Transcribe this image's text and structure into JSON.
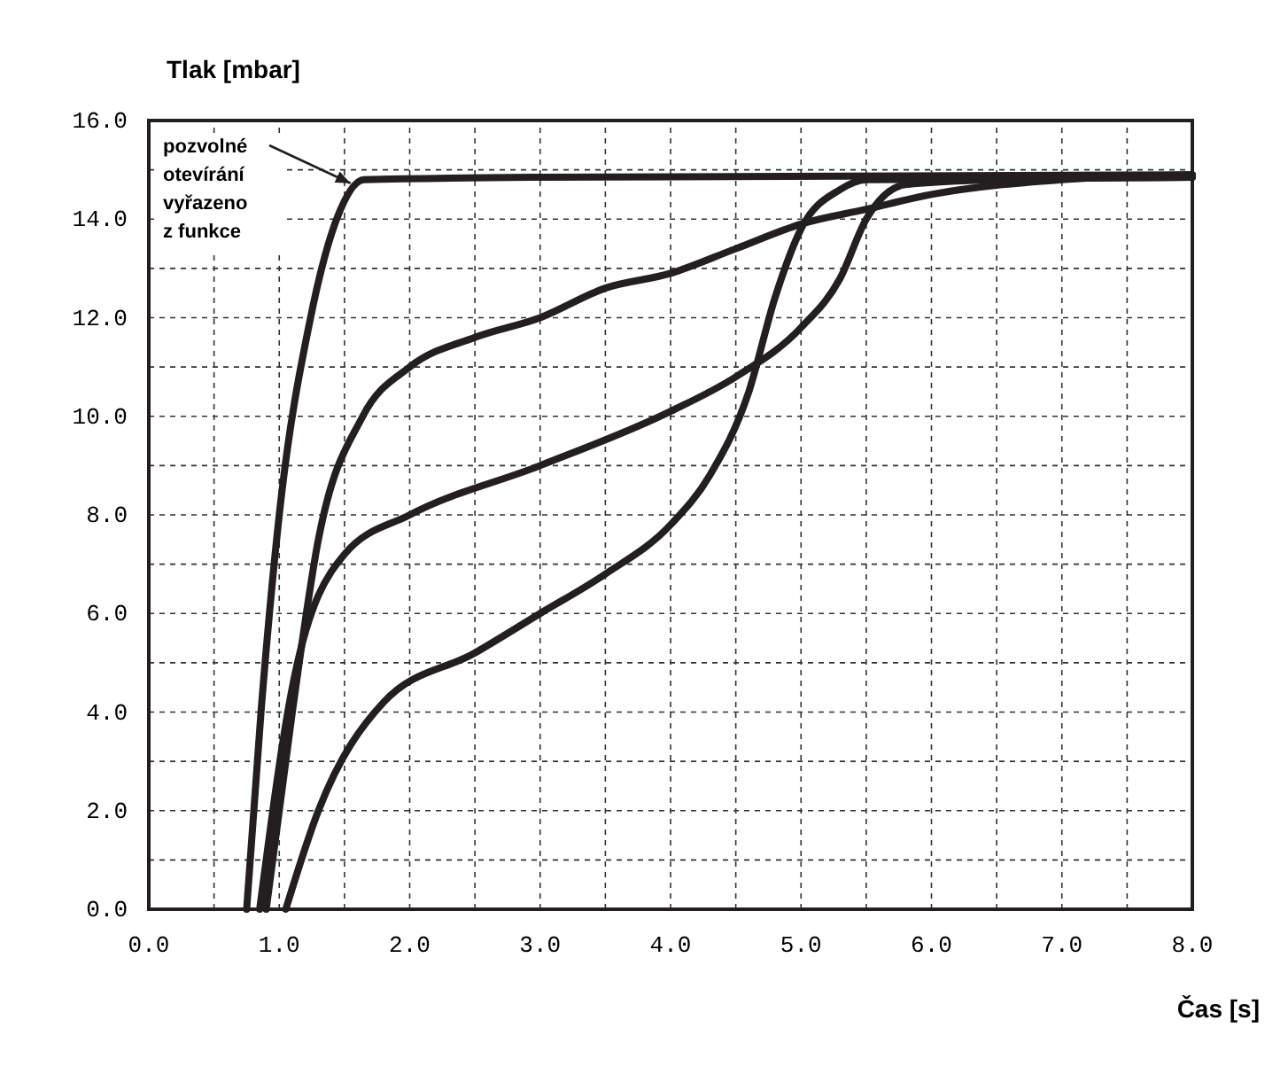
{
  "chart_data": {
    "type": "line",
    "xlabel": "Čas [s]",
    "ylabel": "Tlak [mbar]",
    "xlim": [
      0,
      8
    ],
    "ylim": [
      0,
      16
    ],
    "xticks": [
      {
        "value": 0,
        "label": "0.0"
      },
      {
        "value": 0.5,
        "label": null
      },
      {
        "value": 1,
        "label": "1.0"
      },
      {
        "value": 1.5,
        "label": null
      },
      {
        "value": 2,
        "label": "2.0"
      },
      {
        "value": 2.5,
        "label": null
      },
      {
        "value": 3,
        "label": "3.0"
      },
      {
        "value": 3.5,
        "label": null
      },
      {
        "value": 4,
        "label": "4.0"
      },
      {
        "value": 4.5,
        "label": null
      },
      {
        "value": 5,
        "label": "5.0"
      },
      {
        "value": 5.5,
        "label": null
      },
      {
        "value": 6,
        "label": "6.0"
      },
      {
        "value": 6.5,
        "label": null
      },
      {
        "value": 7,
        "label": "7.0"
      },
      {
        "value": 7.5,
        "label": null
      },
      {
        "value": 8,
        "label": "8.0"
      }
    ],
    "yticks": [
      {
        "value": 0,
        "label": "0.0"
      },
      {
        "value": 1,
        "label": null
      },
      {
        "value": 2,
        "label": "2.0"
      },
      {
        "value": 3,
        "label": null
      },
      {
        "value": 4,
        "label": "4.0"
      },
      {
        "value": 5,
        "label": null
      },
      {
        "value": 6,
        "label": "6.0"
      },
      {
        "value": 7,
        "label": null
      },
      {
        "value": 8,
        "label": "8.0"
      },
      {
        "value": 9,
        "label": null
      },
      {
        "value": 10,
        "label": "10.0"
      },
      {
        "value": 11,
        "label": null
      },
      {
        "value": 12,
        "label": "12.0"
      },
      {
        "value": 13,
        "label": null
      },
      {
        "value": 14,
        "label": "14.0"
      },
      {
        "value": 15,
        "label": null
      },
      {
        "value": 16,
        "label": "16.0"
      }
    ],
    "grid": true,
    "line_style": "solid",
    "marker": "none",
    "annotations": [
      {
        "text": "pozvolné\notevírání\nvyřazeno\nz funkce",
        "x": 1.6,
        "y": 14.8
      }
    ],
    "series": [
      {
        "color": "#231f20",
        "x": [
          0.75,
          0.86,
          1.0,
          1.24,
          1.44,
          1.65,
          3.0,
          8.0
        ],
        "values": [
          0,
          4,
          8,
          12,
          14,
          14.8,
          14.85,
          14.9
        ]
      },
      {
        "color": "#231f20",
        "x": [
          0.9,
          1.1,
          1.3,
          1.64,
          2.0,
          2.5,
          3.0,
          3.5,
          4.0,
          4.5,
          5.0,
          5.5,
          6.0,
          7.0,
          8.0
        ],
        "values": [
          0,
          4,
          7.5,
          10,
          11,
          11.6,
          12.0,
          12.6,
          12.9,
          13.4,
          13.9,
          14.2,
          14.5,
          14.8,
          14.9
        ]
      },
      {
        "color": "#231f20",
        "x": [
          0.85,
          1.1,
          1.5,
          2.0,
          3.0,
          4.0,
          4.5,
          5.0,
          5.3,
          5.5,
          5.8,
          6.5,
          8.0
        ],
        "values": [
          0,
          4.5,
          7.2,
          8.0,
          9.0,
          10.1,
          10.8,
          11.8,
          12.8,
          14.0,
          14.7,
          14.8,
          14.85
        ]
      },
      {
        "color": "#231f20",
        "x": [
          1.05,
          1.3,
          1.8,
          2.5,
          3.0,
          3.5,
          4.0,
          4.3,
          4.6,
          4.8,
          5.0,
          5.3,
          5.5,
          8.0
        ],
        "values": [
          0,
          2,
          4.2,
          5.2,
          6.0,
          6.8,
          7.8,
          8.8,
          10.5,
          12.4,
          13.8,
          14.6,
          14.8,
          14.85
        ]
      }
    ]
  }
}
